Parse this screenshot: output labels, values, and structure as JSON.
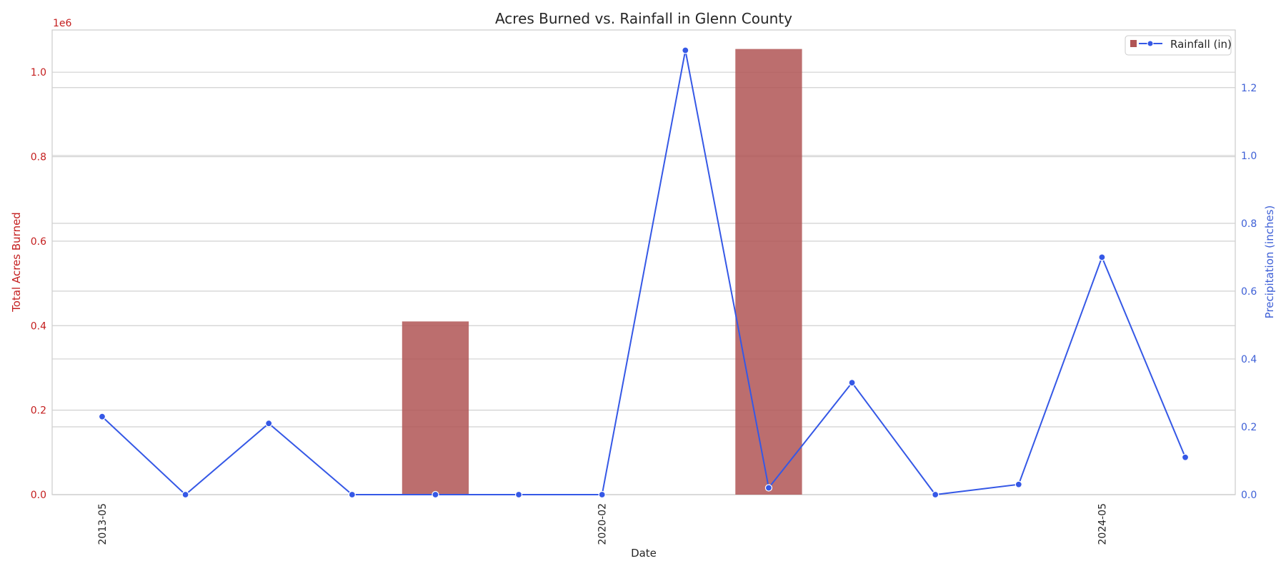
{
  "chart_data": {
    "type": "bar+line",
    "title": "Acres Burned vs. Rainfall in Glenn County",
    "xlabel": "Date",
    "categories": [
      "2013-05",
      "",
      "",
      "",
      "",
      "",
      "2020-02",
      "",
      "",
      "",
      "",
      "",
      "2024-05",
      ""
    ],
    "x_tick_labels": [
      "2013-05",
      "2020-02",
      "2024-05"
    ],
    "grid": true,
    "legend_position": "top-right",
    "left_axis": {
      "label": "Total Acres Burned",
      "ylim": [
        0,
        1100000
      ],
      "ticks": [
        "0.0",
        "0.2",
        "0.4",
        "0.6",
        "0.8",
        "1.0"
      ],
      "offset_label": "1e6",
      "color": "#c41e1e"
    },
    "right_axis": {
      "label": "Precipitation (inches)",
      "ylim": [
        0,
        1.37
      ],
      "ticks": [
        "0.0",
        "0.2",
        "0.4",
        "0.6",
        "0.8",
        "1.0",
        "1.2"
      ],
      "color": "#3d5fd6"
    },
    "series": [
      {
        "type": "bar",
        "axis": "left",
        "color": "#b05555",
        "values": [
          0,
          0,
          0,
          0,
          410000,
          0,
          0,
          0,
          1055000,
          0,
          0,
          0,
          0,
          0
        ]
      },
      {
        "type": "line",
        "axis": "right",
        "name": "Rainfall (in)",
        "color": "#3558e6",
        "values": [
          0.23,
          0.0,
          0.21,
          0.0,
          0.0,
          0.0,
          0.0,
          1.31,
          0.02,
          0.33,
          0.0,
          0.03,
          0.7,
          0.11
        ]
      }
    ]
  }
}
